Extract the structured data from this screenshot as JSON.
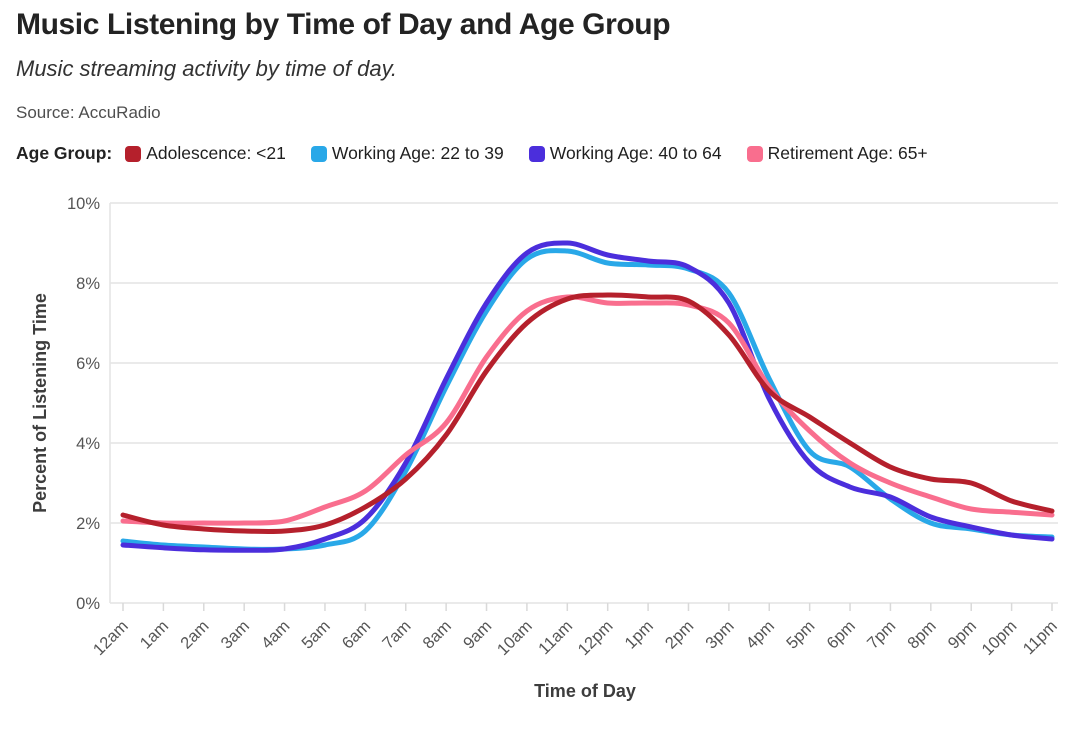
{
  "header": {
    "title": "Music Listening by Time of Day and Age Group",
    "subtitle": "Music streaming activity by time of day.",
    "source": "Source: AccuRadio"
  },
  "chart_data": {
    "type": "line",
    "title": "Music Listening by Time of Day and Age Group",
    "subtitle": "Music streaming activity by time of day.",
    "source_note": "Source: AccuRadio",
    "legend_title": "Age Group:",
    "legend_position": "top",
    "xlabel": "Time of Day",
    "ylabel": "Percent of Listening Time",
    "ylim": [
      0,
      10
    ],
    "yticks": [
      0,
      2,
      4,
      6,
      8,
      10
    ],
    "ytick_labels": [
      "0%",
      "2%",
      "4%",
      "6%",
      "8%",
      "10%"
    ],
    "grid": "horizontal",
    "x": [
      "12am",
      "1am",
      "2am",
      "3am",
      "4am",
      "5am",
      "6am",
      "7am",
      "8am",
      "9am",
      "10am",
      "11am",
      "12pm",
      "1pm",
      "2pm",
      "3pm",
      "4pm",
      "5pm",
      "6pm",
      "7pm",
      "8pm",
      "9pm",
      "10pm",
      "11pm"
    ],
    "series": [
      {
        "name": "Adolescence: <21",
        "color": "#B5202C",
        "values": [
          2.2,
          1.95,
          1.85,
          1.8,
          1.8,
          1.95,
          2.4,
          3.1,
          4.2,
          5.8,
          7.0,
          7.6,
          7.7,
          7.65,
          7.55,
          6.7,
          5.3,
          4.65,
          4.0,
          3.4,
          3.1,
          3.0,
          2.55,
          2.3
        ]
      },
      {
        "name": "Working Age: 22 to 39",
        "color": "#29A8E8",
        "values": [
          1.55,
          1.45,
          1.4,
          1.35,
          1.35,
          1.45,
          1.8,
          3.3,
          5.4,
          7.3,
          8.6,
          8.8,
          8.5,
          8.45,
          8.35,
          7.75,
          5.6,
          3.8,
          3.4,
          2.6,
          2.0,
          1.85,
          1.7,
          1.65
        ]
      },
      {
        "name": "Working Age: 40 to 64",
        "color": "#4B2EDC",
        "values": [
          1.45,
          1.38,
          1.33,
          1.32,
          1.35,
          1.6,
          2.1,
          3.5,
          5.6,
          7.5,
          8.75,
          9.0,
          8.7,
          8.55,
          8.4,
          7.5,
          5.1,
          3.5,
          2.9,
          2.65,
          2.15,
          1.9,
          1.7,
          1.6
        ]
      },
      {
        "name": "Retirement Age: 65+",
        "color": "#F96E8E",
        "values": [
          2.05,
          2.0,
          2.0,
          2.0,
          2.05,
          2.4,
          2.8,
          3.7,
          4.5,
          6.15,
          7.3,
          7.65,
          7.5,
          7.5,
          7.45,
          7.0,
          5.4,
          4.3,
          3.5,
          3.0,
          2.65,
          2.35,
          2.27,
          2.2
        ]
      }
    ]
  }
}
